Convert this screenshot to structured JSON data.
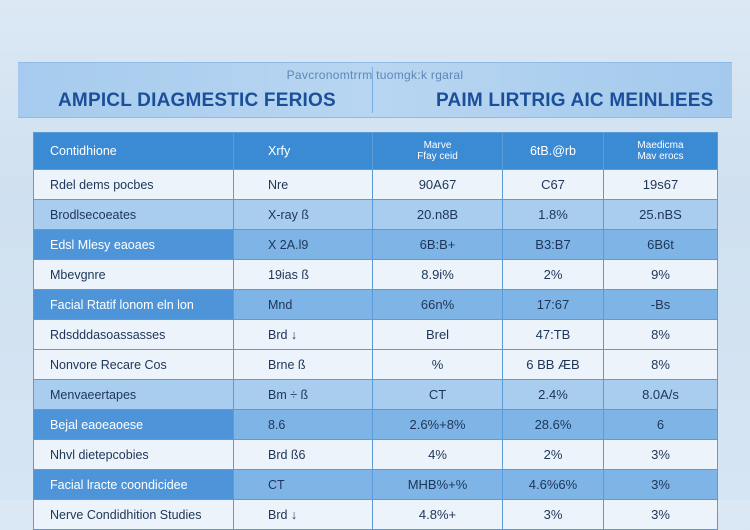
{
  "banner": {
    "subtitle": "Pavcronomtrrm  tuomgk:k  rgaral",
    "title_left": "AMPICL DIAGMESTIC FERIOS",
    "title_right": "PAIM LIRTRIG AIC MEINLIEES"
  },
  "table": {
    "headers": [
      {
        "line1": "Contidhione",
        "line2": ""
      },
      {
        "line1": "Xrfy",
        "line2": ""
      },
      {
        "line1": "Marve",
        "line2": "Ffay ceid"
      },
      {
        "line1": "6tB.@rb",
        "line2": ""
      },
      {
        "line1": "Maedicma",
        "line2": "Mav erocs"
      }
    ],
    "rows": [
      {
        "style": "plain",
        "cells": [
          "Rdel dems pocbes",
          "Nre",
          "90A67",
          "C67",
          "19s67"
        ]
      },
      {
        "style": "alt",
        "cells": [
          "Brodlsecoeates",
          "X-ray ß",
          "20.n8B",
          "1.8%",
          "25.nBS"
        ]
      },
      {
        "style": "dark",
        "cells": [
          "Edsl Mlesy eaoaes",
          "X 2A.l9",
          "6B:B+",
          "B3:B7",
          "6B6t"
        ]
      },
      {
        "style": "plain",
        "cells": [
          "Mbevgnre",
          "19ias  ß",
          "8.9i%",
          "2%",
          "9%"
        ]
      },
      {
        "style": "dark",
        "cells": [
          "Facial Rtatif lonom eln lon",
          "Mnd",
          "66n%",
          "17:67",
          "-Bs"
        ]
      },
      {
        "style": "plain",
        "cells": [
          "Rdsdddasoassasses",
          "Brd   ↓",
          "Brel",
          "47:TB",
          "8%"
        ]
      },
      {
        "style": "plain",
        "cells": [
          "Nonvore Recare Cos",
          "Brne   ß",
          "%",
          "6 BB ÆB",
          "8%"
        ]
      },
      {
        "style": "alt",
        "cells": [
          "Menvaeertapes",
          "Bm ÷ ß",
          "CT",
          "2.4%",
          "8.0A/s"
        ]
      },
      {
        "style": "dark",
        "cells": [
          "Bejal eaoeaoese",
          "8.6",
          "2.6%+8%",
          "28.6%",
          "6"
        ]
      },
      {
        "style": "plain",
        "cells": [
          "Nhvl dietepcobies",
          "Brd    ß6",
          "4%",
          "2%",
          "3%"
        ]
      },
      {
        "style": "dark",
        "cells": [
          "Facial lracte coondicidee",
          "CT",
          "MHB%+%",
          "4.6%6%",
          "3%"
        ]
      },
      {
        "style": "plain",
        "cells": [
          "Nerve Condidhition Studies",
          "Brd   ↓",
          "4.8%+",
          "3%",
          "3%"
        ]
      }
    ]
  }
}
